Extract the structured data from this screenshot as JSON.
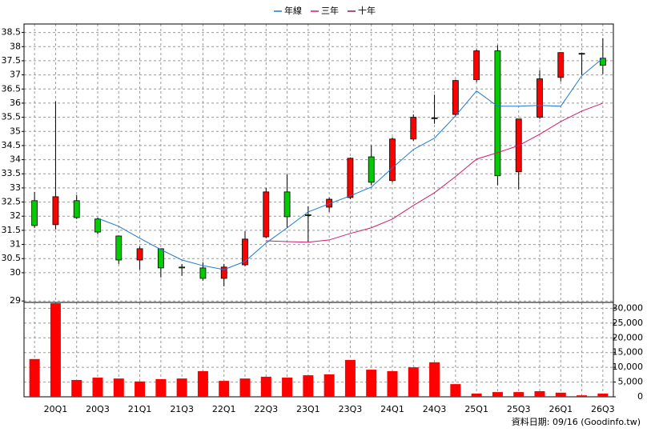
{
  "chart_data": {
    "type": "candlestick",
    "categories": [
      null,
      "20Q1",
      null,
      "20Q3",
      null,
      "21Q1",
      null,
      "21Q3",
      null,
      "22Q1",
      null,
      "22Q3",
      null,
      "23Q1",
      null,
      "23Q3",
      null,
      "24Q1",
      null,
      "24Q3",
      null,
      "25Q1",
      null,
      "25Q3",
      null,
      "26Q1",
      null,
      "26Q3"
    ],
    "open": [
      32.55,
      31.7,
      32.55,
      31.9,
      31.3,
      30.45,
      30.85,
      30.2,
      30.17,
      29.8,
      30.28,
      31.27,
      32.86,
      32.05,
      32.32,
      32.66,
      34.1,
      33.26,
      34.73,
      35.47,
      35.6,
      36.83,
      37.85,
      33.57,
      35.5,
      36.91,
      37.75,
      37.59
    ],
    "high": [
      32.86,
      36.06,
      32.75,
      31.95,
      31.3,
      30.93,
      30.85,
      30.31,
      30.37,
      30.31,
      31.47,
      33.0,
      33.48,
      32.35,
      32.66,
      34.08,
      34.5,
      34.79,
      35.6,
      36.3,
      36.83,
      37.9,
      38.05,
      35.44,
      37.17,
      37.79,
      37.79,
      38.3
    ],
    "low": [
      31.59,
      31.53,
      31.9,
      31.36,
      30.31,
      30.11,
      29.83,
      29.89,
      29.72,
      29.52,
      30.23,
      31.22,
      31.59,
      31.1,
      32.15,
      32.6,
      33.09,
      33.2,
      34.67,
      35.27,
      35.55,
      36.74,
      33.09,
      32.95,
      35.44,
      36.77,
      37.0,
      37.03
    ],
    "close": [
      31.67,
      32.69,
      31.95,
      31.44,
      30.45,
      30.85,
      30.17,
      30.17,
      29.8,
      30.2,
      31.19,
      32.86,
      31.98,
      32.04,
      32.6,
      34.05,
      33.2,
      34.73,
      35.5,
      35.48,
      36.8,
      37.85,
      33.43,
      35.44,
      36.86,
      37.79,
      37.76,
      37.34
    ],
    "up_color": "#ff0000",
    "down_color": "#00cc00",
    "ylim": [
      28.95,
      38.8
    ],
    "yticks": [
      29,
      30,
      30.5,
      31,
      31.5,
      32,
      32.5,
      33,
      33.5,
      34,
      34.5,
      35,
      35.5,
      36,
      36.5,
      37,
      37.5,
      38,
      38.5
    ],
    "grid": true,
    "series": [
      {
        "name": "年線",
        "color": "#1e78d2",
        "values": [
          null,
          null,
          null,
          31.93,
          31.64,
          31.22,
          30.82,
          30.45,
          30.25,
          30.11,
          30.4,
          31.05,
          31.59,
          32.15,
          32.44,
          32.72,
          33.03,
          33.71,
          34.36,
          34.76,
          35.55,
          36.43,
          35.89,
          35.89,
          35.92,
          35.89,
          36.97,
          37.59
        ]
      },
      {
        "name": "三年",
        "color": "#d01c6a",
        "values": [
          null,
          null,
          null,
          null,
          null,
          null,
          null,
          null,
          null,
          null,
          null,
          31.13,
          31.1,
          31.08,
          31.16,
          31.39,
          31.59,
          31.9,
          32.38,
          32.83,
          33.4,
          34.02,
          34.25,
          34.5,
          34.9,
          35.35,
          35.72,
          36.0
        ]
      },
      {
        "name": "十年",
        "color": "#8b1a5a",
        "values": [
          null,
          null,
          null,
          null,
          null,
          null,
          null,
          null,
          null,
          null,
          null,
          null,
          null,
          null,
          null,
          null,
          null,
          null,
          null,
          null,
          null,
          null,
          null,
          null,
          null,
          null,
          null,
          null
        ]
      }
    ],
    "volume": {
      "color": "#ff0000",
      "values": [
        12800,
        31700,
        5700,
        6500,
        6200,
        5200,
        6000,
        6200,
        8700,
        5400,
        6200,
        6800,
        6500,
        7300,
        7600,
        12500,
        9200,
        8700,
        10000,
        11700,
        4300,
        1100,
        1600,
        1600,
        1900,
        1400,
        500,
        1100
      ],
      "ylim": [
        0,
        32000
      ],
      "yticks": [
        0,
        {
          "value": 5000,
          "label": "5,000"
        },
        {
          "value": 10000,
          "label": "10,000"
        },
        {
          "value": 15000,
          "label": "15,000"
        },
        {
          "value": 20000,
          "label": "20,000"
        },
        {
          "value": 25000,
          "label": "25,000"
        },
        {
          "value": 30000,
          "label": "30,000"
        }
      ]
    },
    "source": "資料日期: 09/16 (Goodinfo.tw)"
  }
}
